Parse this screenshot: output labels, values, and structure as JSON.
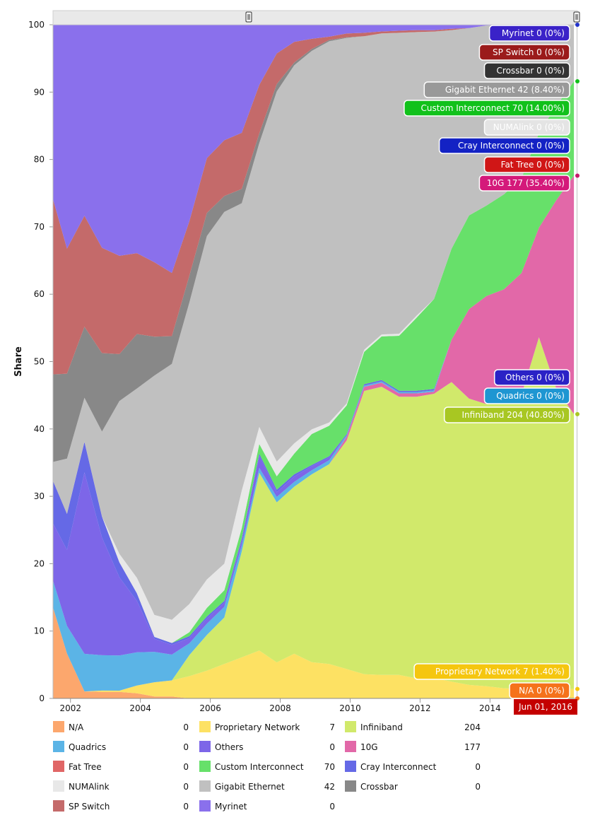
{
  "chart_data": {
    "type": "area",
    "stacking": "percent",
    "ylabel": "Share",
    "ylim": [
      0,
      100
    ],
    "yticks": [
      0,
      10,
      20,
      30,
      40,
      50,
      60,
      70,
      80,
      90,
      100
    ],
    "xlim": [
      2001.5,
      2016.5
    ],
    "xtick_labels": [
      "2002",
      "2004",
      "2006",
      "2008",
      "2010",
      "2012",
      "2014",
      "6"
    ],
    "grid": true,
    "x": [
      2001.5,
      2001.9,
      2002.4,
      2002.9,
      2003.4,
      2003.9,
      2004.4,
      2004.9,
      2005.4,
      2005.9,
      2006.4,
      2006.9,
      2007.4,
      2007.9,
      2008.4,
      2008.9,
      2009.4,
      2009.9,
      2010.4,
      2010.9,
      2011.4,
      2011.9,
      2012.4,
      2012.9,
      2013.4,
      2013.9,
      2014.4,
      2014.9,
      2015.4,
      2015.9,
      2016.4
    ],
    "series": [
      {
        "name": "N/A",
        "color": "#fca76d",
        "values": [
          13.5,
          6.5,
          1,
          1,
          1,
          0.8,
          0.3,
          0.3,
          0,
          0,
          0,
          0,
          0,
          0,
          0,
          0,
          0,
          0,
          0,
          0,
          0,
          0,
          0,
          0,
          0,
          0,
          0,
          0,
          0,
          0,
          0
        ]
      },
      {
        "name": "Proprietary Network",
        "color": "#fde163",
        "values": [
          0,
          0,
          0,
          0.2,
          0.2,
          1.2,
          2.2,
          2.5,
          3.4,
          4.2,
          5.2,
          6,
          7,
          5.4,
          6.5,
          5.4,
          5.2,
          4.7,
          3.6,
          3.5,
          3.5,
          3,
          3,
          2.5,
          2,
          1.8,
          1.5,
          1.4,
          1.4,
          1.4,
          1.4
        ]
      },
      {
        "name": "Infiniband",
        "color": "#d1e96b",
        "values": [
          0,
          0,
          0,
          0,
          0,
          0,
          0,
          0,
          3.2,
          5.4,
          7,
          15.5,
          26,
          24,
          24.3,
          28,
          30.2,
          36.5,
          42,
          43,
          41.5,
          42,
          42,
          44.5,
          42.5,
          41.5,
          43.5,
          43.5,
          52,
          44.5,
          40.8
        ]
      },
      {
        "name": "10G",
        "color": "#e268a8",
        "values": [
          0,
          0,
          0,
          0,
          0,
          0,
          0,
          0,
          0,
          0,
          0,
          0,
          0,
          0,
          0,
          0,
          0,
          0.6,
          0.6,
          0.6,
          0.5,
          0.5,
          0.3,
          6.3,
          13.3,
          15.9,
          15.3,
          18,
          16.2,
          28,
          35.4
        ]
      },
      {
        "name": "Quadrics",
        "color": "#5bb4e6",
        "values": [
          4,
          4,
          5.4,
          5.4,
          5.4,
          5.2,
          4.7,
          4,
          1.8,
          1.7,
          1.6,
          0.9,
          0.7,
          0.8,
          0.7,
          0.6,
          0.6,
          0.2,
          0.2,
          0.2,
          0.2,
          0.2,
          0.2,
          0,
          0,
          0,
          0,
          0,
          0,
          0,
          0
        ]
      },
      {
        "name": "Others",
        "color": "#7d66e8",
        "values": [
          8.5,
          11,
          26,
          18,
          12,
          8,
          2,
          1.5,
          0.8,
          0.8,
          0.6,
          0.7,
          1.8,
          0.7,
          0.8,
          0.6,
          0.4,
          0,
          0,
          0,
          0,
          0,
          0,
          0,
          0,
          0,
          0,
          0,
          0,
          0,
          0
        ]
      },
      {
        "name": "Cray Interconnect",
        "color": "#6569e6",
        "values": [
          6.3,
          5.2,
          4.4,
          3.2,
          2.3,
          1.2,
          0.3,
          0.3,
          0.3,
          0.3,
          0.3,
          0.3,
          0.3,
          0.4,
          0.3,
          0.2,
          0.2,
          0.2,
          0.2,
          0.2,
          0.2,
          0.2,
          0.2,
          0,
          0,
          0,
          0,
          0,
          0,
          0,
          0
        ]
      },
      {
        "name": "Custom Interconnect",
        "color": "#67e06a",
        "values": [
          0,
          0,
          0,
          0,
          0,
          0,
          0,
          0,
          0.6,
          1.3,
          1.6,
          1.5,
          1.4,
          2,
          3,
          4.6,
          4.6,
          4.6,
          4.8,
          6.5,
          8.2,
          10.9,
          13.3,
          13.5,
          13.9,
          13.3,
          14,
          14,
          14,
          14,
          14
        ]
      },
      {
        "name": "NUMAlink",
        "color": "#e8e8e8",
        "values": [
          0,
          0,
          0,
          0,
          1.3,
          2.4,
          3.4,
          3.6,
          4.3,
          4.3,
          4,
          5.5,
          2.5,
          2.2,
          1.5,
          0.7,
          0.5,
          0.3,
          0.3,
          0.3,
          0.3,
          0.3,
          0,
          0,
          0,
          0,
          0,
          0,
          0,
          0,
          0
        ]
      },
      {
        "name": "Gigabit Ethernet",
        "color": "#c0c0c0",
        "values": [
          2.8,
          8,
          6.3,
          13,
          23.5,
          29.5,
          37,
          39.7,
          46,
          52,
          53,
          42,
          41.5,
          55.5,
          55,
          56.4,
          57.6,
          58.4,
          46.5,
          44.9,
          44.9,
          42.3,
          39.5,
          32.5,
          27.8,
          26.5,
          25,
          22.7,
          16,
          12,
          8.4
        ]
      },
      {
        "name": "Crossbar",
        "color": "#888888",
        "values": [
          13,
          12.3,
          10.2,
          12,
          7.2,
          8.5,
          6,
          4.3,
          4.1,
          3.5,
          2.4,
          2.1,
          1.4,
          1.1,
          0.4,
          0.3,
          0.2,
          0.1,
          0,
          0,
          0,
          0,
          0,
          0,
          0,
          0,
          0,
          0,
          0,
          0,
          0
        ]
      },
      {
        "name": "SP Switch",
        "color": "#c46a6a",
        "values": [
          26,
          18.1,
          15.9,
          16.1,
          15.1,
          12.6,
          11.5,
          9.8,
          8.3,
          8.3,
          8.4,
          8.2,
          7.1,
          4.6,
          3,
          1.5,
          0.5,
          0.6,
          0.5,
          0.3,
          0.3,
          0.3,
          0.2,
          0.2,
          0,
          0,
          0,
          0,
          0,
          0,
          0
        ]
      },
      {
        "name": "Fat Tree",
        "color": "#e06666",
        "values": [
          0,
          0,
          0,
          0,
          0,
          0,
          0,
          0,
          0,
          0,
          0,
          0,
          0,
          0,
          0,
          0,
          0,
          0,
          0,
          0,
          0,
          0,
          0,
          0,
          0,
          0,
          0,
          0,
          0,
          0,
          0
        ]
      },
      {
        "name": "Myrinet",
        "color": "#8a70ec",
        "values": [
          25.9,
          32.4,
          27.4,
          34.1,
          35.5,
          35.6,
          36.7,
          38.5,
          30,
          20.2,
          17.4,
          15.8,
          8.8,
          4.3,
          2.5,
          2.1,
          1.8,
          1.4,
          1.2,
          1,
          0.9,
          0.8,
          0.8,
          0.6,
          0.5,
          0.1,
          0,
          0,
          0,
          0,
          0
        ]
      }
    ],
    "tooltips": [
      {
        "series": "Myrinet",
        "label": "Myrinet 0 (0%)",
        "bg": "#3a22c8"
      },
      {
        "series": "SP Switch",
        "label": "SP Switch 0 (0%)",
        "bg": "#9b1b1b"
      },
      {
        "series": "Crossbar",
        "label": "Crossbar 0 (0%)",
        "bg": "#333333"
      },
      {
        "series": "Gigabit Ethernet",
        "label": "Gigabit Ethernet 42 (8.40%)",
        "bg": "#999999"
      },
      {
        "series": "Custom Interconnect",
        "label": "Custom Interconnect 70 (14.00%)",
        "bg": "#11c11b"
      },
      {
        "series": "NUMAlink",
        "label": "NUMAlink 0 (0%)",
        "bg": "#e4e4e4",
        "fg": "#ffffff"
      },
      {
        "series": "Cray Interconnect",
        "label": "Cray Interconnect 0 (0%)",
        "bg": "#1322c4"
      },
      {
        "series": "Fat Tree",
        "label": "Fat Tree 0 (0%)",
        "bg": "#d01616"
      },
      {
        "series": "10G",
        "label": "10G 177 (35.40%)",
        "bg": "#d4197a"
      },
      {
        "series": "Others",
        "label": "Others 0 (0%)",
        "bg": "#2a22c6"
      },
      {
        "series": "Quadrics",
        "label": "Quadrics 0 (0%)",
        "bg": "#1e96d2"
      },
      {
        "series": "Infiniband",
        "label": "Infiniband 204 (40.80%)",
        "bg": "#a8c722"
      },
      {
        "series": "Proprietary Network",
        "label": "Proprietary Network 7 (1.40%)",
        "bg": "#f5c60f"
      },
      {
        "series": "N/A",
        "label": "N/A 0 (0%)",
        "bg": "#f5721b"
      }
    ],
    "crosshair_date": "Jun 01, 2016",
    "legend": {
      "position": "bottom",
      "columns": [
        [
          {
            "name": "N/A",
            "count": "0"
          },
          {
            "name": "Quadrics",
            "count": "0"
          },
          {
            "name": "Fat Tree",
            "count": "0"
          },
          {
            "name": "NUMAlink",
            "count": "0"
          },
          {
            "name": "SP Switch",
            "count": "0"
          }
        ],
        [
          {
            "name": "Proprietary Network",
            "count": "7"
          },
          {
            "name": "Others",
            "count": "0"
          },
          {
            "name": "Custom Interconnect",
            "count": "70"
          },
          {
            "name": "Gigabit Ethernet",
            "count": "42"
          },
          {
            "name": "Myrinet",
            "count": "0"
          }
        ],
        [
          {
            "name": "Infiniband",
            "count": "204"
          },
          {
            "name": "10G",
            "count": "177"
          },
          {
            "name": "Cray Interconnect",
            "count": "0"
          },
          {
            "name": "Crossbar",
            "count": "0"
          }
        ]
      ]
    }
  }
}
